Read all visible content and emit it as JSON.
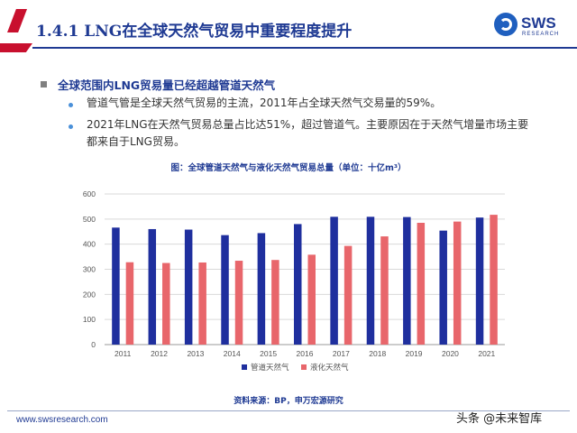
{
  "header": {
    "title": "1.4.1 LNG在全球天然气贸易中重要程度提升"
  },
  "logo": {
    "name": "SWS",
    "sub": "RESEARCH"
  },
  "section": {
    "heading": "全球范围内LNG贸易量已经超越管道天然气"
  },
  "bullets": [
    "管道气管是全球天然气贸易的主流，2011年占全球天然气交易量的59%。",
    "2021年LNG在天然气贸易总量占比达51%，超过管道气。主要原因在于天然气增量市场主要",
    "都来自于LNG贸易。"
  ],
  "chart_data": {
    "type": "bar",
    "title": "图：全球管道天然气与液化天然气贸易总量（单位：十亿m³）",
    "categories": [
      "2011",
      "2012",
      "2013",
      "2014",
      "2015",
      "2016",
      "2017",
      "2018",
      "2019",
      "2020",
      "2021"
    ],
    "series": [
      {
        "name": "管道天然气",
        "color": "#1f2f9e",
        "values": [
          466,
          460,
          458,
          436,
          444,
          480,
          509,
          509,
          508,
          454,
          506
        ]
      },
      {
        "name": "液化天然气",
        "color": "#e8666b",
        "values": [
          328,
          325,
          327,
          334,
          337,
          358,
          393,
          431,
          485,
          490,
          517
        ]
      }
    ],
    "ylim": [
      0,
      600
    ],
    "yticks": [
      "0",
      "100",
      "200",
      "300",
      "400",
      "500",
      "600"
    ],
    "grid": true,
    "legend": "bottom"
  },
  "source": "资料来源：BP，申万宏源研究",
  "footer": {
    "url": "www.swsresearch.com",
    "watermark": "头条 @未来智库"
  }
}
